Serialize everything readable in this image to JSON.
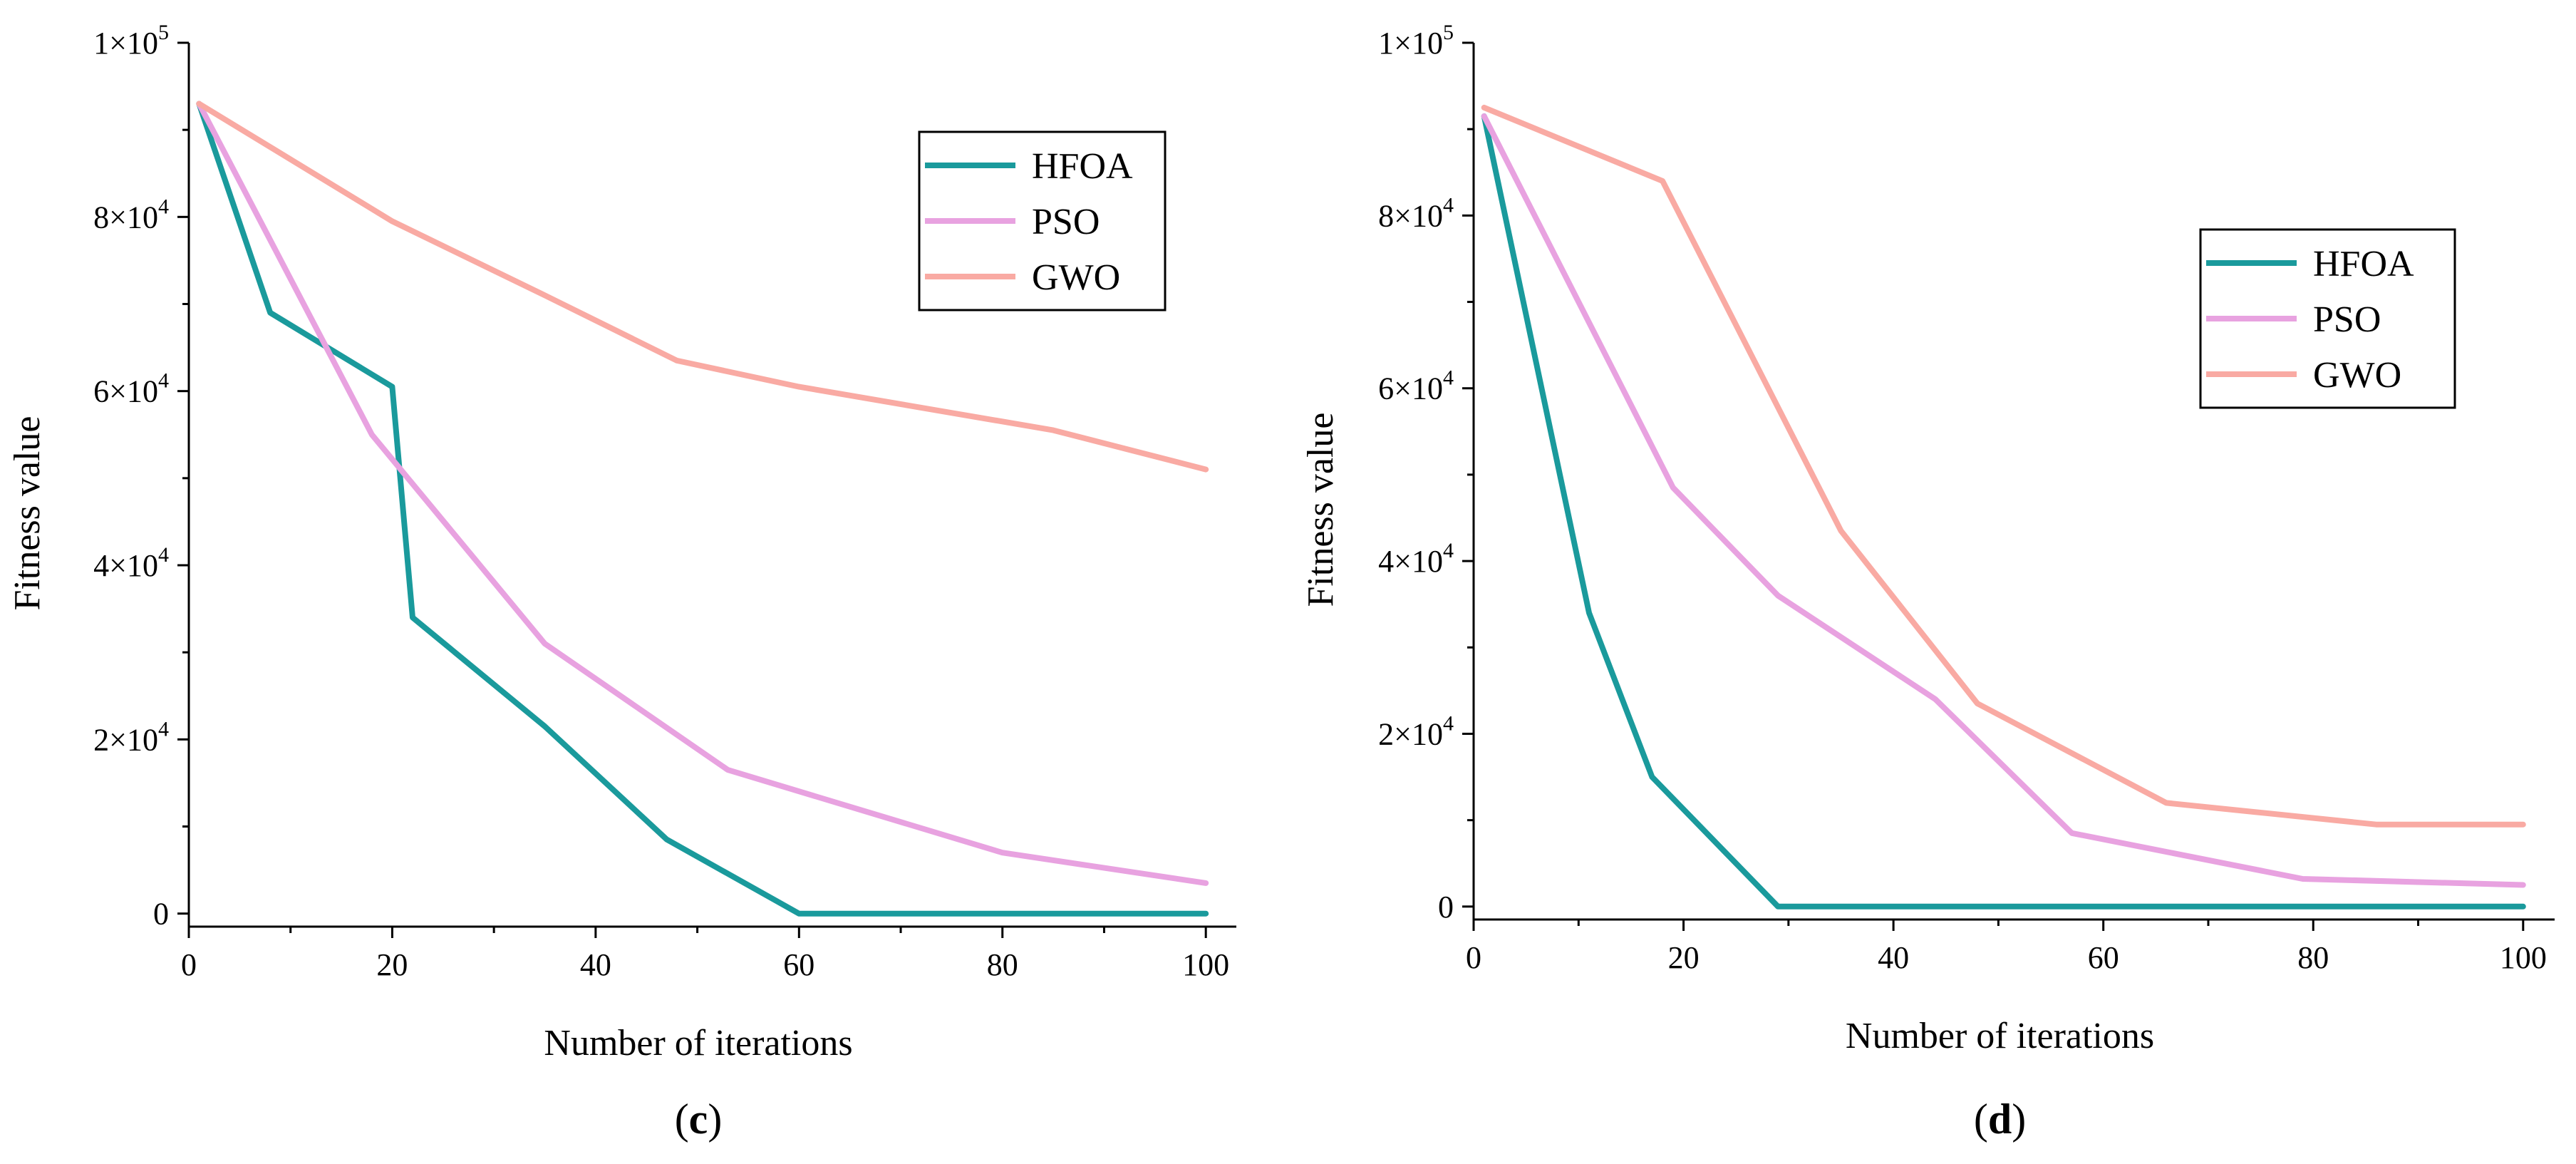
{
  "chart_data": [
    {
      "type": "line",
      "caption": "(c)",
      "xlabel": "Number of iterations",
      "ylabel": "Fitness value",
      "xlim": [
        0,
        103
      ],
      "ylim": [
        -1500,
        100000
      ],
      "xticks": [
        0,
        20,
        40,
        60,
        80,
        100
      ],
      "yticks": [
        {
          "value": 0,
          "mantissa": "0",
          "exp": ""
        },
        {
          "value": 20000,
          "mantissa": "2×10",
          "exp": "4"
        },
        {
          "value": 40000,
          "mantissa": "4×10",
          "exp": "4"
        },
        {
          "value": 60000,
          "mantissa": "6×10",
          "exp": "4"
        },
        {
          "value": 80000,
          "mantissa": "8×10",
          "exp": "4"
        },
        {
          "value": 100000,
          "mantissa": "1×10",
          "exp": "5"
        }
      ],
      "grid": false,
      "legend_position": "top-right",
      "series": [
        {
          "name": "HFOA",
          "color": "#1a9a9c",
          "x": [
            1,
            8,
            20,
            22,
            35,
            47,
            60,
            100
          ],
          "y": [
            93000,
            69000,
            60500,
            34000,
            21500,
            8500,
            0,
            0
          ]
        },
        {
          "name": "PSO",
          "color": "#e8a2e0",
          "x": [
            1,
            18,
            35,
            53,
            80,
            100
          ],
          "y": [
            93000,
            55000,
            31000,
            16500,
            7000,
            3500
          ]
        },
        {
          "name": "GWO",
          "color": "#f9aaa3",
          "x": [
            1,
            20,
            35,
            48,
            60,
            85,
            100
          ],
          "y": [
            93000,
            79500,
            71000,
            63500,
            60500,
            55500,
            51000
          ]
        }
      ]
    },
    {
      "type": "line",
      "caption": "(d)",
      "xlabel": "Number of iterations",
      "ylabel": "Fitness value",
      "xlim": [
        0,
        103
      ],
      "ylim": [
        -1500,
        100000
      ],
      "xticks": [
        0,
        20,
        40,
        60,
        80,
        100
      ],
      "yticks": [
        {
          "value": 0,
          "mantissa": "0",
          "exp": ""
        },
        {
          "value": 20000,
          "mantissa": "2×10",
          "exp": "4"
        },
        {
          "value": 40000,
          "mantissa": "4×10",
          "exp": "4"
        },
        {
          "value": 60000,
          "mantissa": "6×10",
          "exp": "4"
        },
        {
          "value": 80000,
          "mantissa": "8×10",
          "exp": "4"
        },
        {
          "value": 100000,
          "mantissa": "1×10",
          "exp": "5"
        }
      ],
      "grid": false,
      "legend_position": "top-right",
      "series": [
        {
          "name": "HFOA",
          "color": "#1a9a9c",
          "x": [
            1,
            11,
            17,
            29,
            40,
            100
          ],
          "y": [
            91500,
            34000,
            15000,
            0,
            0,
            0
          ]
        },
        {
          "name": "PSO",
          "color": "#e8a2e0",
          "x": [
            1,
            19,
            29,
            44,
            57,
            79,
            100
          ],
          "y": [
            91500,
            48500,
            36000,
            24000,
            8500,
            3200,
            2500
          ]
        },
        {
          "name": "GWO",
          "color": "#f9aaa3",
          "x": [
            1,
            18,
            35,
            48,
            66,
            86,
            100
          ],
          "y": [
            92500,
            84000,
            43500,
            23500,
            12000,
            9500,
            9500
          ]
        }
      ]
    }
  ]
}
